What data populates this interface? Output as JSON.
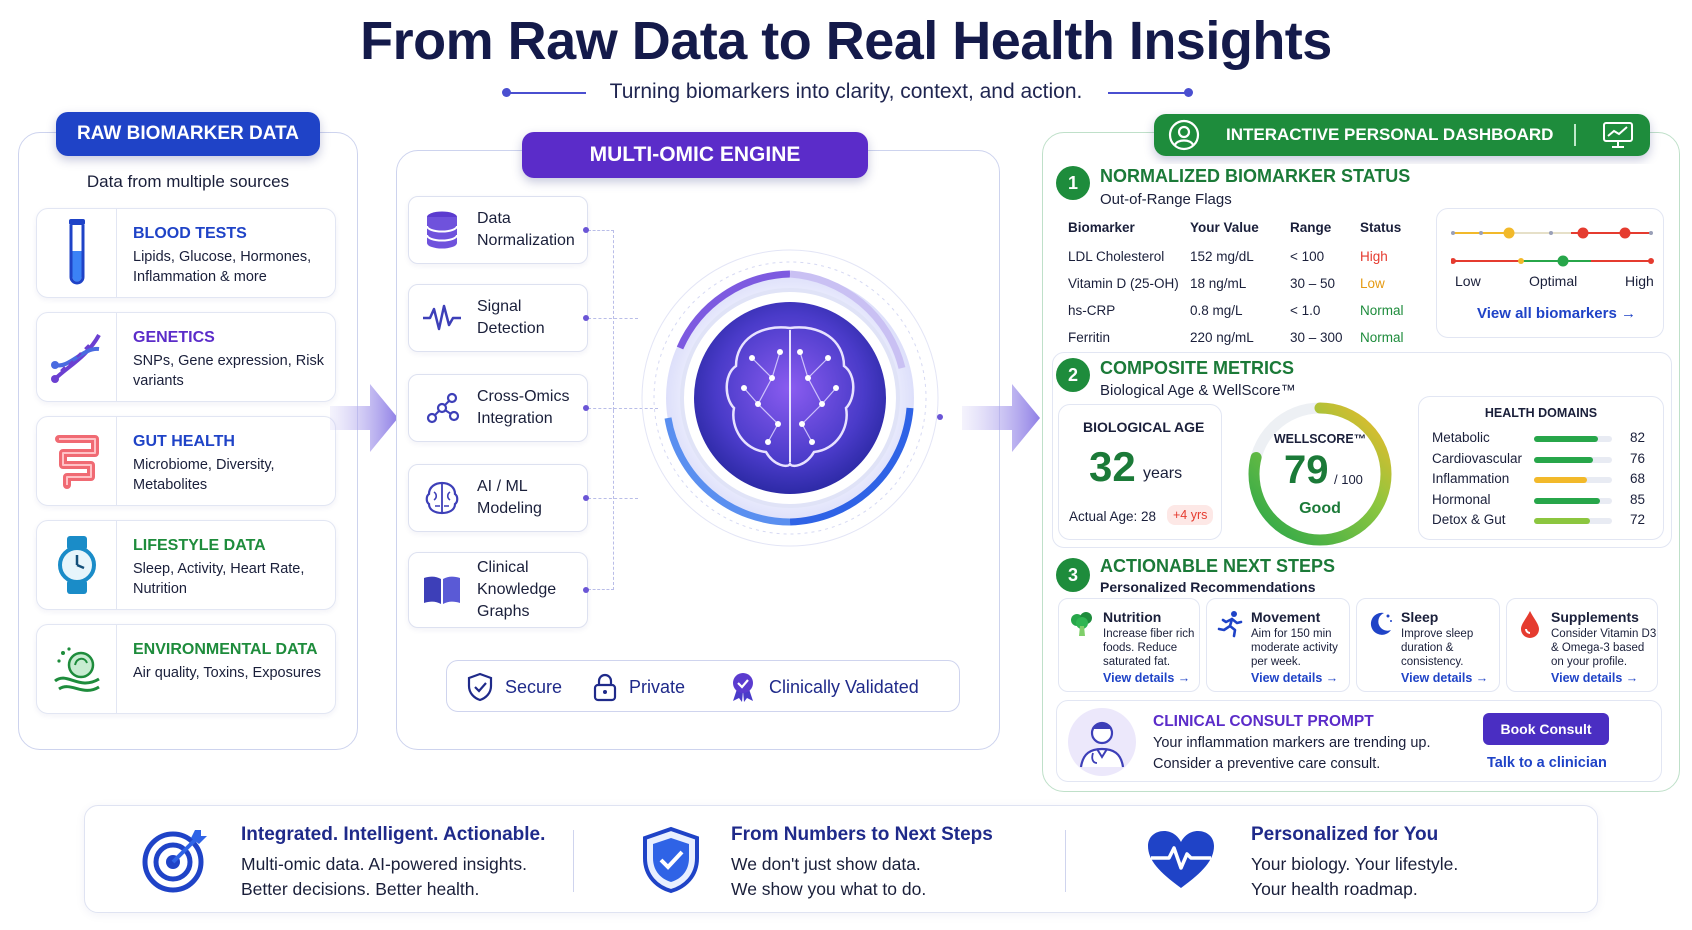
{
  "header": {
    "title": "From Raw Data to Real Health Insights",
    "subtitle": "Turning biomarkers into clarity, context, and action."
  },
  "raw": {
    "badge": "RAW BIOMARKER DATA",
    "subtitle": "Data from multiple sources",
    "sources": [
      {
        "title": "BLOOD TESTS",
        "desc": "Lipids, Glucose, Hormones, Inflammation & more",
        "icon": "test-tube-icon",
        "color": "#1f43c7"
      },
      {
        "title": "GENETICS",
        "desc": "SNPs, Gene expression, Risk variants",
        "icon": "dna-icon",
        "color": "#5b2cc9"
      },
      {
        "title": "GUT HEALTH",
        "desc": "Microbiome, Diversity, Metabolites",
        "icon": "intestine-icon",
        "color": "#1f43c7"
      },
      {
        "title": "LIFESTYLE DATA",
        "desc": "Sleep, Activity, Heart Rate, Nutrition",
        "icon": "watch-icon",
        "color": "#1e8c3c"
      },
      {
        "title": "ENVIRONMENTAL DATA",
        "desc": "Air quality, Toxins, Exposures",
        "icon": "environment-icon",
        "color": "#1e8c3c"
      }
    ]
  },
  "engine": {
    "badge": "MULTI-OMIC ENGINE",
    "steps": [
      {
        "label": "Data Normalization",
        "icon": "database-icon"
      },
      {
        "label": "Signal Detection",
        "icon": "signal-wave-icon"
      },
      {
        "label": "Cross-Omics Integration",
        "icon": "network-nodes-icon"
      },
      {
        "label": "AI / ML Modeling",
        "icon": "brain-chip-icon"
      },
      {
        "label": "Clinical Knowledge Graphs",
        "icon": "book-icon"
      }
    ],
    "badges": [
      {
        "label": "Secure",
        "icon": "shield-check-icon"
      },
      {
        "label": "Private",
        "icon": "lock-icon"
      },
      {
        "label": "Clinically Validated",
        "icon": "award-ribbon-icon"
      }
    ],
    "center_icon": "brain-network-icon"
  },
  "dashboard": {
    "badge": "INTERACTIVE PERSONAL DASHBOARD",
    "badge_icons": [
      "user-icon",
      "monitor-chart-icon"
    ],
    "section1": {
      "number": "1",
      "title": "NORMALIZED BIOMARKER STATUS",
      "subtitle": "Out-of-Range Flags",
      "columns": [
        "Biomarker",
        "Your Value",
        "Range",
        "Status"
      ],
      "rows": [
        {
          "name": "LDL Cholesterol",
          "value": "152 mg/dL",
          "range": "< 100",
          "status": "High",
          "level": "high"
        },
        {
          "name": "Vitamin D (25-OH)",
          "value": "18 ng/mL",
          "range": "30 – 50",
          "status": "Low",
          "level": "low"
        },
        {
          "name": "hs-CRP",
          "value": "0.8 mg/L",
          "range": "< 1.0",
          "status": "Normal",
          "level": "normal"
        },
        {
          "name": "Ferritin",
          "value": "220 ng/mL",
          "range": "30 – 300",
          "status": "Normal",
          "level": "normal"
        }
      ],
      "scale_labels": [
        "Low",
        "Optimal",
        "High"
      ],
      "view_all": "View all biomarkers →",
      "colors": {
        "high": "#e53b2f",
        "low": "#e59a12",
        "normal": "#1e8c3c"
      }
    },
    "section2": {
      "number": "2",
      "title": "COMPOSITE METRICS",
      "subtitle": "Biological Age & WellScore™",
      "bio_age": {
        "label": "BIOLOGICAL AGE",
        "value": "32",
        "unit": "years",
        "actual": "Actual Age: 28",
        "delta": "+4 yrs"
      },
      "wellscore": {
        "label": "WELLSCORE™",
        "value": 79,
        "value_text": "79",
        "max": "/ 100",
        "rating": "Good"
      },
      "domains_title": "HEALTH DOMAINS",
      "domains": [
        {
          "name": "Metabolic",
          "value": 82,
          "value_text": "82",
          "color": "#27a64a"
        },
        {
          "name": "Cardiovascular",
          "value": 76,
          "value_text": "76",
          "color": "#27a64a"
        },
        {
          "name": "Inflammation",
          "value": 68,
          "value_text": "68",
          "color": "#f2b92a"
        },
        {
          "name": "Hormonal",
          "value": 85,
          "value_text": "85",
          "color": "#27a64a"
        },
        {
          "name": "Detox & Gut",
          "value": 72,
          "value_text": "72",
          "color": "#8cc63f"
        }
      ]
    },
    "section3": {
      "number": "3",
      "title": "ACTIONABLE NEXT STEPS",
      "subtitle": "Personalized Recommendations",
      "recommendations": [
        {
          "title": "Nutrition",
          "desc": "Increase fiber rich foods. Reduce saturated fat.",
          "link": "View details →",
          "icon": "broccoli-icon"
        },
        {
          "title": "Movement",
          "desc": "Aim for 150 min moderate activity per week.",
          "link": "View details →",
          "icon": "running-icon"
        },
        {
          "title": "Sleep",
          "desc": "Improve sleep duration & consistency.",
          "link": "View details →",
          "icon": "moon-icon"
        },
        {
          "title": "Supplements",
          "desc": "Consider Vitamin D3 & Omega-3 based on your profile.",
          "link": "View details →",
          "icon": "drop-icon"
        }
      ],
      "consult": {
        "title": "CLINICAL CONSULT PROMPT",
        "line1": "Your inflammation markers are trending up.",
        "line2": "Consider a preventive care consult.",
        "button": "Book Consult",
        "link": "Talk to a clinician",
        "icon": "doctor-icon"
      }
    }
  },
  "footer": [
    {
      "title": "Integrated. Intelligent. Actionable.",
      "line1": "Multi-omic data. AI-powered insights.",
      "line2": "Better decisions. Better health.",
      "icon": "target-icon"
    },
    {
      "title": "From Numbers to Next Steps",
      "line1": "We don't just show data.",
      "line2": "We show you what to do.",
      "icon": "shield-check-icon"
    },
    {
      "title": "Personalized for You",
      "line1": "Your biology. Your lifestyle.",
      "line2": "Your health roadmap.",
      "icon": "heart-pulse-icon"
    }
  ]
}
